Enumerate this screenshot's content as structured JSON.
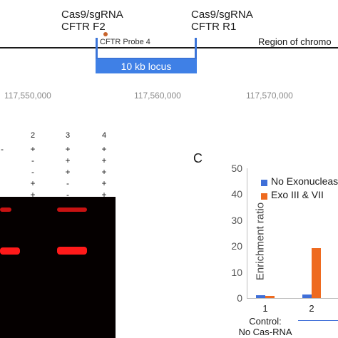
{
  "diagram": {
    "site_f2": {
      "line1": "Cas9/sgRNA",
      "line2": "CFTR F2"
    },
    "site_r1": {
      "line1": "Cas9/sgRNA",
      "line2": "CFTR R1"
    },
    "probe_label": "CFTR Probe 4",
    "locus_label": "10 kb locus",
    "chromosome_label": "Region of chromo",
    "coordinates": [
      "117,550,000",
      "117,560,000",
      "117,570,000"
    ]
  },
  "gel": {
    "lane_numbers": [
      "2",
      "3",
      "4"
    ],
    "rows": [
      [
        "-",
        "+",
        "+",
        "+"
      ],
      [
        "",
        "-",
        "+",
        "+"
      ],
      [
        "",
        "-",
        "+",
        "+"
      ],
      [
        "",
        "+",
        "-",
        "+"
      ],
      [
        "",
        "+",
        "-",
        "+"
      ]
    ],
    "colors": {
      "background": "#050000",
      "band_strong": "#ff1a1a",
      "band_weak": "#d01010"
    }
  },
  "panel_c": {
    "letter": "C"
  },
  "chart_data": {
    "type": "bar",
    "title": "",
    "xlabel": "",
    "ylabel": "Enrichment ratio",
    "ylim": [
      0,
      50
    ],
    "yticks": [
      0,
      10,
      20,
      30,
      40,
      50
    ],
    "categories": [
      "1",
      "2"
    ],
    "category_sublabels": [
      "Control:\nNo Cas-RNA",
      ""
    ],
    "series": [
      {
        "name": "No Exonucleas",
        "color": "#3f6fd8",
        "values": [
          1.2,
          1.5
        ]
      },
      {
        "name": "Exo III & VII",
        "color": "#ee6a1f",
        "values": [
          0.8,
          19.3
        ]
      }
    ],
    "legend": "top-right",
    "grid": false
  }
}
